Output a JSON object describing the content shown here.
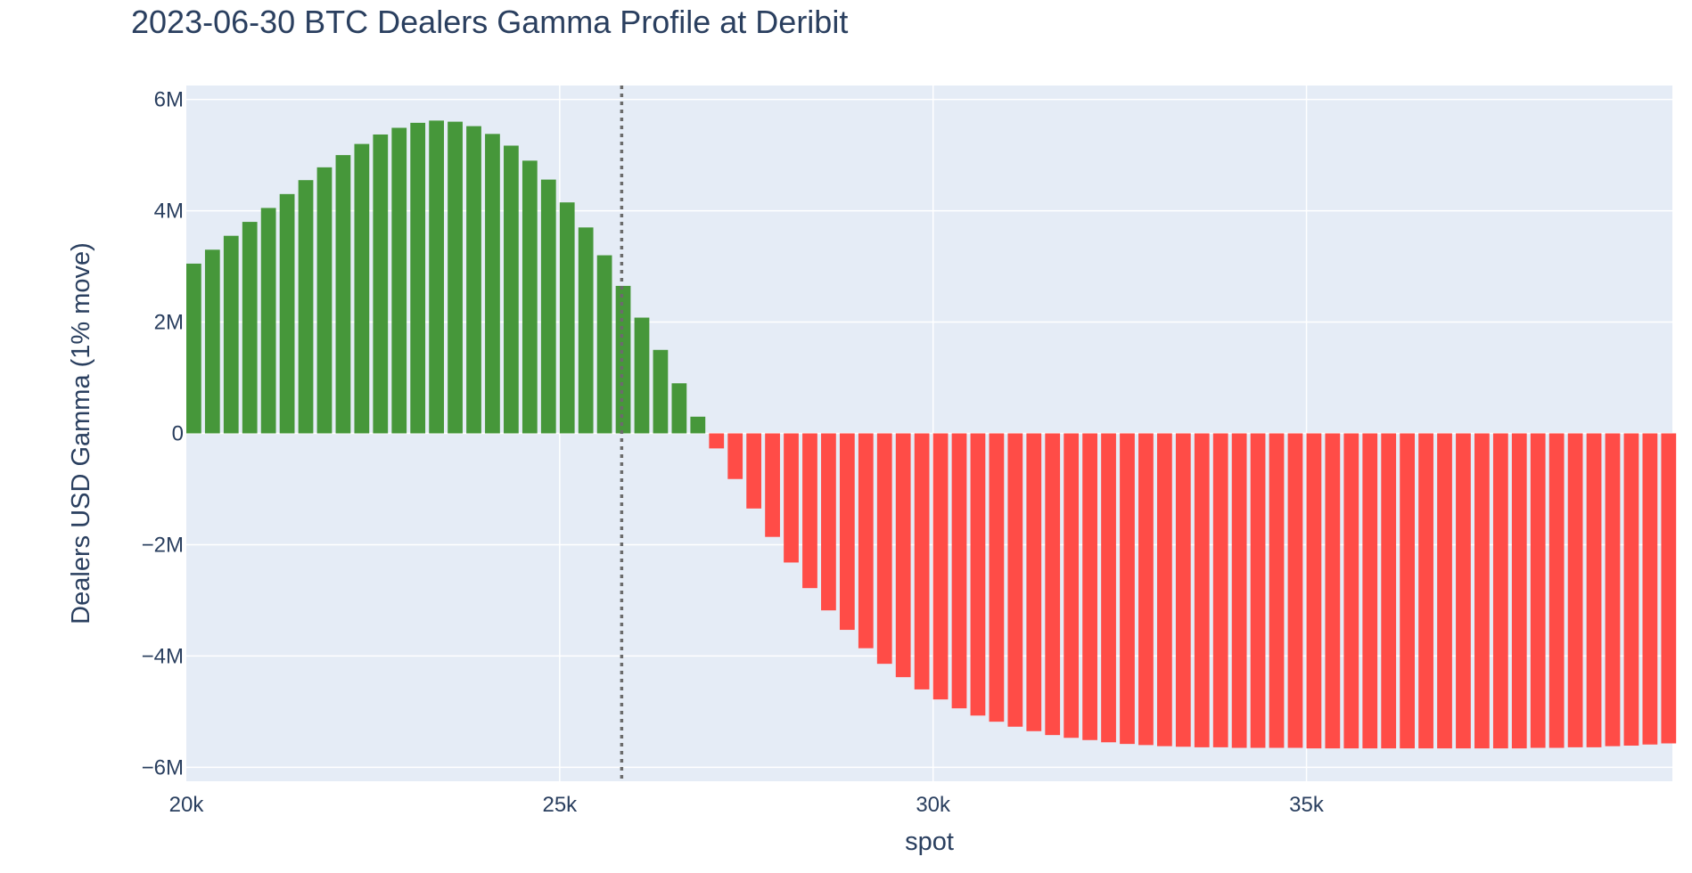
{
  "chart_data": {
    "type": "bar",
    "title": "2023-06-30 BTC Dealers Gamma Profile at Deribit",
    "xlabel": "spot",
    "ylabel": "Dealers USD Gamma (1% move)",
    "xlim": [
      20000,
      39900
    ],
    "ylim": [
      -6250000,
      6250000
    ],
    "x_ticks": [
      {
        "value": 20000,
        "label": "20k"
      },
      {
        "value": 25000,
        "label": "25k"
      },
      {
        "value": 30000,
        "label": "30k"
      },
      {
        "value": 35000,
        "label": "35k"
      }
    ],
    "y_ticks": [
      {
        "value": 6000000,
        "label": "6M"
      },
      {
        "value": 4000000,
        "label": "4M"
      },
      {
        "value": 2000000,
        "label": "2M"
      },
      {
        "value": 0,
        "label": "0"
      },
      {
        "value": -2000000,
        "label": "−2M"
      },
      {
        "value": -4000000,
        "label": "−4M"
      },
      {
        "value": -6000000,
        "label": "−6M"
      }
    ],
    "spot_line": 25830,
    "bar_width": 200,
    "positive_color": "#46973a",
    "negative_color": "#ff4c47",
    "plot_bg": "#e5ecf6",
    "grid": true,
    "x": [
      20100,
      20350,
      20600,
      20850,
      21100,
      21350,
      21600,
      21850,
      22100,
      22350,
      22600,
      22850,
      23100,
      23350,
      23600,
      23850,
      24100,
      24350,
      24600,
      24850,
      25100,
      25350,
      25600,
      25850,
      26100,
      26350,
      26600,
      26850,
      27100,
      27350,
      27600,
      27850,
      28100,
      28350,
      28600,
      28850,
      29100,
      29350,
      29600,
      29850,
      30100,
      30350,
      30600,
      30850,
      31100,
      31350,
      31600,
      31850,
      32100,
      32350,
      32600,
      32850,
      33100,
      33350,
      33600,
      33850,
      34100,
      34350,
      34600,
      34850,
      35100,
      35350,
      35600,
      35850,
      36100,
      36350,
      36600,
      36850,
      37100,
      37350,
      37600,
      37850,
      38100,
      38350,
      38600,
      38850,
      39100,
      39350,
      39600,
      39850
    ],
    "values": [
      3050000,
      3300000,
      3550000,
      3800000,
      4050000,
      4300000,
      4550000,
      4780000,
      5000000,
      5200000,
      5370000,
      5490000,
      5580000,
      5620000,
      5600000,
      5520000,
      5380000,
      5170000,
      4900000,
      4560000,
      4150000,
      3700000,
      3200000,
      2650000,
      2080000,
      1500000,
      900000,
      300000,
      -270000,
      -820000,
      -1350000,
      -1860000,
      -2320000,
      -2780000,
      -3180000,
      -3530000,
      -3860000,
      -4140000,
      -4380000,
      -4600000,
      -4780000,
      -4940000,
      -5070000,
      -5180000,
      -5270000,
      -5350000,
      -5420000,
      -5470000,
      -5510000,
      -5550000,
      -5580000,
      -5600000,
      -5620000,
      -5630000,
      -5640000,
      -5640000,
      -5650000,
      -5650000,
      -5650000,
      -5650000,
      -5660000,
      -5660000,
      -5660000,
      -5660000,
      -5660000,
      -5660000,
      -5660000,
      -5660000,
      -5660000,
      -5660000,
      -5660000,
      -5660000,
      -5650000,
      -5650000,
      -5640000,
      -5640000,
      -5620000,
      -5610000,
      -5590000,
      -5570000
    ]
  }
}
